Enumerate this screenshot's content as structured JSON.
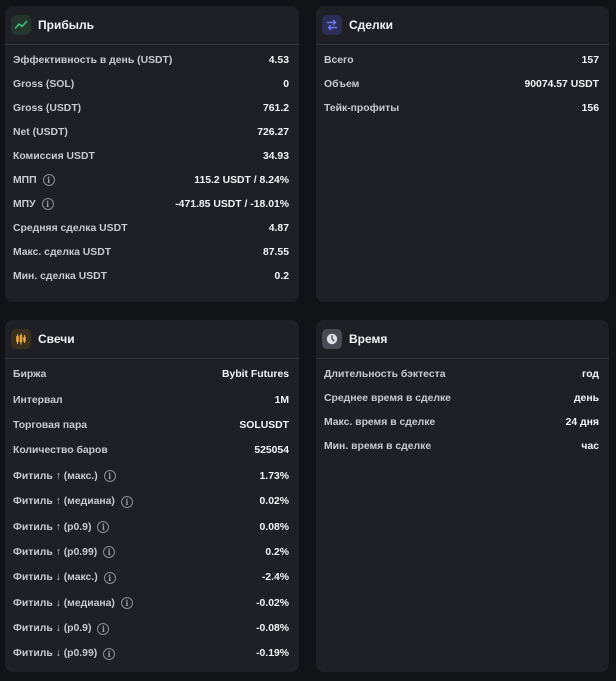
{
  "profit": {
    "title": "Прибыль",
    "icon": "trend-up-icon",
    "icon_color": "#3fbf73",
    "rows": [
      {
        "label": "Эффективность в день (USDT)",
        "value": "4.53",
        "info": false
      },
      {
        "label": "Gross (SOL)",
        "value": "0",
        "info": false
      },
      {
        "label": "Gross (USDT)",
        "value": "761.2",
        "info": false
      },
      {
        "label": "Net (USDT)",
        "value": "726.27",
        "info": false
      },
      {
        "label": "Комиссия USDT",
        "value": "34.93",
        "info": false
      },
      {
        "label": "МПП",
        "value": "115.2 USDT / 8.24%",
        "info": true
      },
      {
        "label": "МПУ",
        "value": "-471.85 USDT / -18.01%",
        "info": true
      },
      {
        "label": "Средняя сделка USDT",
        "value": "4.87",
        "info": false
      },
      {
        "label": "Макс. сделка USDT",
        "value": "87.55",
        "info": false
      },
      {
        "label": "Мин. сделка USDT",
        "value": "0.2",
        "info": false
      }
    ]
  },
  "deals": {
    "title": "Сделки",
    "icon": "swap-arrows-icon",
    "icon_color": "#6b79f0",
    "rows": [
      {
        "label": "Всего",
        "value": "157"
      },
      {
        "label": "Объем",
        "value": "90074.57 USDT"
      },
      {
        "label": "Тейк-профиты",
        "value": "156"
      }
    ]
  },
  "candles": {
    "title": "Свечи",
    "icon": "candlestick-icon",
    "icon_color": "#e8a93a",
    "rows": [
      {
        "label": "Биржа",
        "value": "Bybit Futures",
        "info": false
      },
      {
        "label": "Интервал",
        "value": "1M",
        "info": false
      },
      {
        "label": "Торговая пара",
        "value": "SOLUSDT",
        "info": false
      },
      {
        "label": "Количество баров",
        "value": "525054",
        "info": false
      },
      {
        "label": "Фитиль ↑ (макс.)",
        "value": "1.73%",
        "info": true
      },
      {
        "label": "Фитиль ↑ (медиана)",
        "value": "0.02%",
        "info": true
      },
      {
        "label": "Фитиль ↑ (p0.9)",
        "value": "0.08%",
        "info": true
      },
      {
        "label": "Фитиль ↑ (p0.99)",
        "value": "0.2%",
        "info": true
      },
      {
        "label": "Фитиль ↓ (макс.)",
        "value": "-2.4%",
        "info": true
      },
      {
        "label": "Фитиль ↓ (медиана)",
        "value": "-0.02%",
        "info": true
      },
      {
        "label": "Фитиль ↓ (p0.9)",
        "value": "-0.08%",
        "info": true
      },
      {
        "label": "Фитиль ↓ (p0.99)",
        "value": "-0.19%",
        "info": true
      }
    ]
  },
  "time": {
    "title": "Время",
    "icon": "clock-icon",
    "icon_color": "#c5c8d0",
    "rows": [
      {
        "label": "Длительность бэктеста",
        "value": "год"
      },
      {
        "label": "Среднее время в сделке",
        "value": "день"
      },
      {
        "label": "Макс. время в сделке",
        "value": "24 дня"
      },
      {
        "label": "Мин. время в сделке",
        "value": "час"
      }
    ]
  }
}
